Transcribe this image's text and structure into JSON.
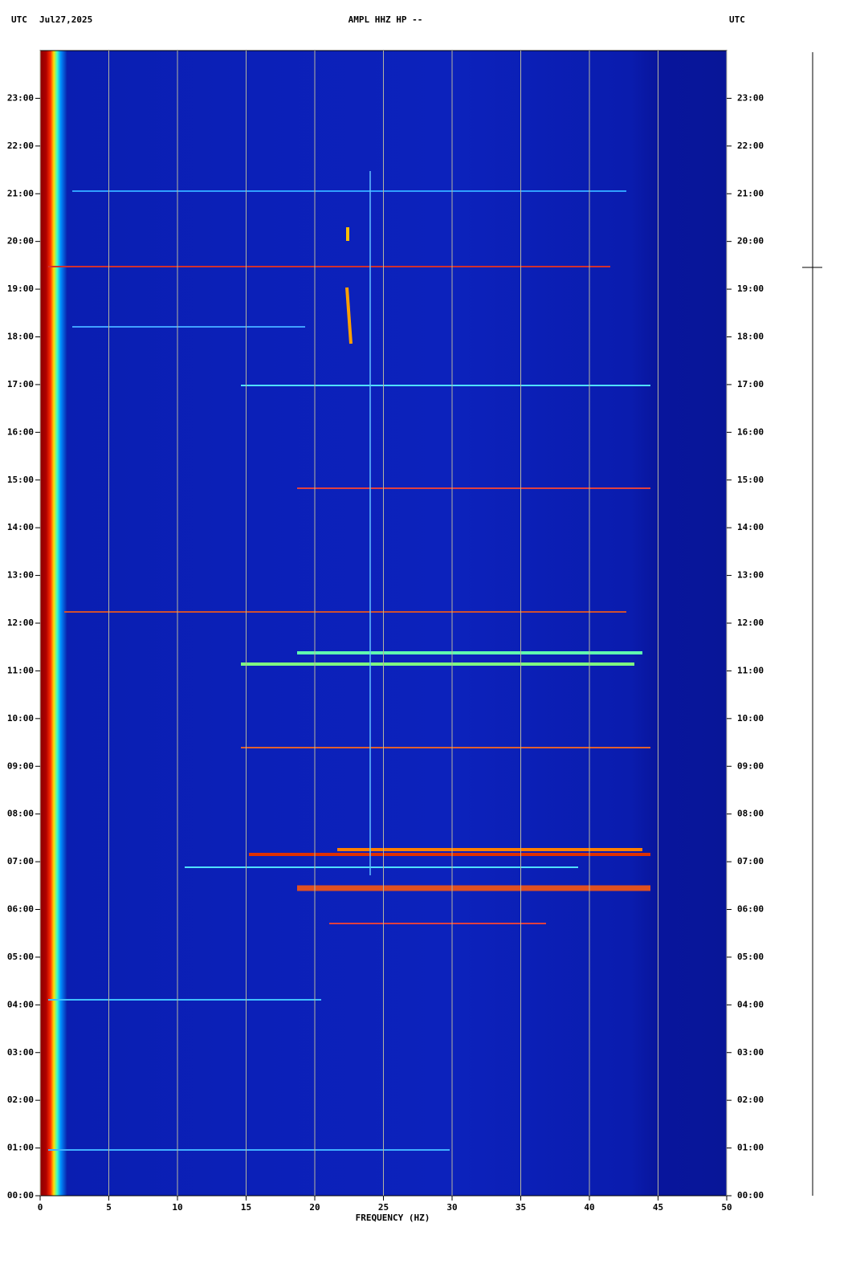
{
  "chart_data": {
    "type": "spectrogram",
    "title": "AMPL HHZ HP --",
    "timezone": "UTC",
    "date": "Jul27,2025",
    "xlabel": "FREQUENCY (HZ)",
    "xlim": [
      0,
      50
    ],
    "xticks": [
      0,
      5,
      10,
      15,
      20,
      25,
      30,
      35,
      40,
      45,
      50
    ],
    "ylim": [
      0,
      24
    ],
    "yticks": [
      {
        "value": 0,
        "label": "00:00"
      },
      {
        "value": 1,
        "label": "01:00"
      },
      {
        "value": 2,
        "label": "02:00"
      },
      {
        "value": 3,
        "label": "03:00"
      },
      {
        "value": 4,
        "label": "04:00"
      },
      {
        "value": 5,
        "label": "05:00"
      },
      {
        "value": 6,
        "label": "06:00"
      },
      {
        "value": 7,
        "label": "07:00"
      },
      {
        "value": 8,
        "label": "08:00"
      },
      {
        "value": 9,
        "label": "09:00"
      },
      {
        "value": 10,
        "label": "10:00"
      },
      {
        "value": 11,
        "label": "11:00"
      },
      {
        "value": 12,
        "label": "12:00"
      },
      {
        "value": 13,
        "label": "13:00"
      },
      {
        "value": 14,
        "label": "14:00"
      },
      {
        "value": 15,
        "label": "15:00"
      },
      {
        "value": 16,
        "label": "16:00"
      },
      {
        "value": 17,
        "label": "17:00"
      },
      {
        "value": 18,
        "label": "18:00"
      },
      {
        "value": 19,
        "label": "19:00"
      },
      {
        "value": 20,
        "label": "20:00"
      },
      {
        "value": 21,
        "label": "21:00"
      },
      {
        "value": 22,
        "label": "22:00"
      },
      {
        "value": 23,
        "label": "23:00"
      }
    ],
    "grid": true,
    "grid_color": "#b4b4a0"
  }
}
